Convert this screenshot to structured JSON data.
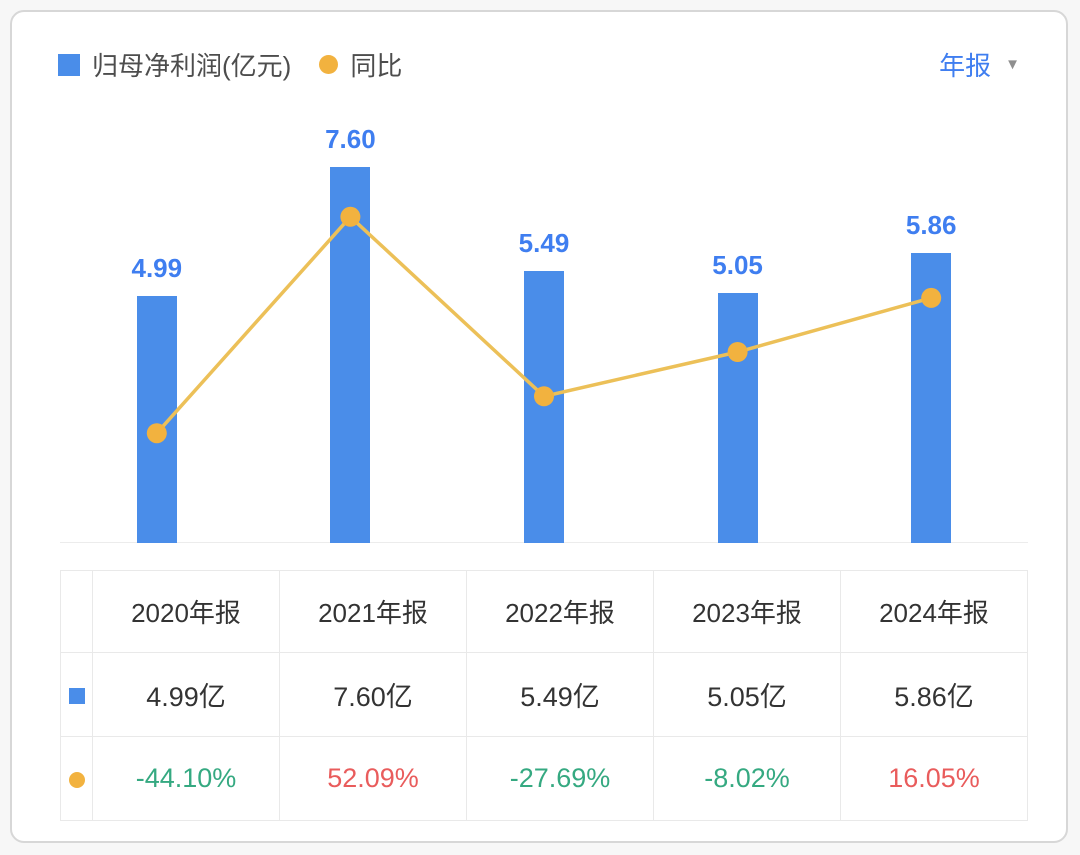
{
  "legend": {
    "series1_label": "归母净利润(亿元)",
    "series2_label": "同比"
  },
  "period_selector": {
    "label": "年报"
  },
  "colors": {
    "bar": "#4a8de9",
    "bar_label": "#3f7ef0",
    "line": "#ecc058",
    "dot": "#f2b23f",
    "positive": "#e95c5c",
    "negative": "#35a981",
    "accent_blue": "#3f7ef0"
  },
  "chart_data": {
    "type": "bar",
    "categories": [
      "2020年报",
      "2021年报",
      "2022年报",
      "2023年报",
      "2024年报"
    ],
    "series": [
      {
        "name": "归母净利润(亿元)",
        "type": "bar",
        "values": [
          4.99,
          7.6,
          5.49,
          5.05,
          5.86
        ],
        "labels": [
          "4.99",
          "7.60",
          "5.49",
          "5.05",
          "5.86"
        ]
      },
      {
        "name": "同比",
        "type": "line",
        "values": [
          -44.1,
          52.09,
          -27.69,
          -8.02,
          16.05
        ],
        "labels": [
          "-44.10%",
          "52.09%",
          "-27.69%",
          "-8.02%",
          "16.05%"
        ]
      }
    ],
    "title": "",
    "xlabel": "",
    "ylabel": "",
    "legend_position": "top-left",
    "grid": false,
    "bar_axis_min": 0,
    "color_convention": "red = positive (up), green = negative (down)"
  },
  "table": {
    "headers": [
      "2020年报",
      "2021年报",
      "2022年报",
      "2023年报",
      "2024年报"
    ],
    "profit_row": [
      "4.99亿",
      "7.60亿",
      "5.49亿",
      "5.05亿",
      "5.86亿"
    ],
    "yoy_row": [
      "-44.10%",
      "52.09%",
      "-27.69%",
      "-8.02%",
      "16.05%"
    ]
  }
}
